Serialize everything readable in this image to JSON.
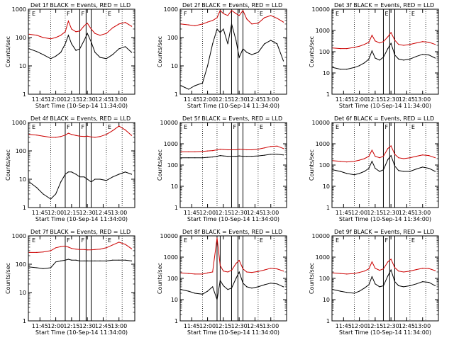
{
  "x_tick_labels": [
    "11:45",
    "12:00",
    "12:15",
    "12:30",
    "12:45",
    "13:00"
  ],
  "x_tick_values": [
    11.75,
    12.0,
    12.25,
    12.5,
    12.75,
    13.0
  ],
  "xlim": [
    11.567,
    13.25
  ],
  "xlabel": "Start Time (10-Sep-14 11:34:00)",
  "ylabel": "Counts/sec",
  "colors": {
    "events": "#000000",
    "lld": "#cc0000",
    "axes": "#000000"
  },
  "chart_data": [
    {
      "type": "line",
      "title": "Det 1f BLACK = Events, RED = LLD",
      "ylim": [
        1,
        1000
      ],
      "yscale": "log",
      "y_ticks": [
        1,
        10,
        100,
        1000
      ],
      "y_tick_labels": [
        "1",
        "10",
        "100",
        "1000"
      ],
      "vlines_dotted": [
        11.92,
        12.15,
        12.8,
        13.05
      ],
      "vlines_solid": [
        12.38,
        12.48,
        12.56
      ],
      "letters": [
        {
          "t": "E",
          "x": 11.6
        },
        {
          "t": "F",
          "x": 12.15
        },
        {
          "t": "F",
          "x": 12.38
        },
        {
          "t": "E",
          "x": 12.8
        }
      ],
      "x": [
        11.58,
        11.7,
        11.8,
        11.92,
        12.0,
        12.08,
        12.15,
        12.2,
        12.25,
        12.32,
        12.38,
        12.45,
        12.5,
        12.56,
        12.62,
        12.7,
        12.8,
        12.9,
        13.0,
        13.1,
        13.2
      ],
      "series": [
        {
          "values": [
            40,
            32,
            25,
            18,
            22,
            30,
            60,
            120,
            60,
            35,
            40,
            80,
            140,
            70,
            30,
            20,
            18,
            25,
            40,
            48,
            30
          ]
        },
        {
          "values": [
            130,
            120,
            100,
            90,
            100,
            120,
            160,
            380,
            200,
            160,
            170,
            260,
            320,
            200,
            140,
            120,
            140,
            220,
            300,
            340,
            250
          ]
        }
      ]
    },
    {
      "type": "line",
      "title": "Det 2f BLACK = Events, RED = LLD",
      "ylim": [
        1,
        1000
      ],
      "yscale": "log",
      "y_ticks": [
        1,
        10,
        100,
        1000
      ],
      "y_tick_labels": [
        "1",
        "10",
        "100",
        "1000"
      ],
      "vlines_dotted": [
        11.92,
        12.15,
        12.8,
        13.05
      ],
      "vlines_solid": [
        12.2,
        12.38,
        12.48,
        12.56
      ],
      "letters": [
        {
          "t": "F",
          "x": 11.6
        },
        {
          "t": "E",
          "x": 12.8
        }
      ],
      "x": [
        11.58,
        11.7,
        11.8,
        11.92,
        12.0,
        12.08,
        12.15,
        12.2,
        12.25,
        12.32,
        12.38,
        12.45,
        12.5,
        12.56,
        12.62,
        12.7,
        12.8,
        12.9,
        13.0,
        13.1,
        13.2
      ],
      "series": [
        {
          "values": [
            2,
            1.5,
            2,
            2.5,
            10,
            60,
            200,
            150,
            200,
            60,
            300,
            80,
            20,
            40,
            30,
            25,
            30,
            60,
            80,
            60,
            15
          ]
        },
        {
          "values": [
            300,
            280,
            260,
            300,
            350,
            400,
            500,
            900,
            700,
            600,
            900,
            700,
            600,
            900,
            450,
            300,
            320,
            500,
            600,
            480,
            350
          ]
        }
      ]
    },
    {
      "type": "line",
      "title": "Det 3f BLACK = Events, RED = LLD",
      "ylim": [
        1,
        10000
      ],
      "yscale": "log",
      "y_ticks": [
        1,
        10,
        100,
        1000,
        10000
      ],
      "y_tick_labels": [
        "1",
        "10",
        "100",
        "1000",
        "10000"
      ],
      "vlines_dotted": [
        11.92,
        12.15,
        12.8,
        13.05
      ],
      "vlines_solid": [
        12.38,
        12.48,
        12.56
      ],
      "letters": [
        {
          "t": "E",
          "x": 11.6
        },
        {
          "t": "E",
          "x": 12.38
        },
        {
          "t": "E",
          "x": 12.8
        }
      ],
      "x": [
        11.58,
        11.7,
        11.8,
        11.92,
        12.0,
        12.08,
        12.15,
        12.2,
        12.25,
        12.32,
        12.38,
        12.45,
        12.5,
        12.56,
        12.62,
        12.7,
        12.8,
        12.9,
        13.0,
        13.1,
        13.2
      ],
      "series": [
        {
          "values": [
            18,
            15,
            15,
            18,
            22,
            30,
            45,
            110,
            50,
            40,
            55,
            140,
            250,
            70,
            45,
            40,
            45,
            60,
            75,
            70,
            50
          ]
        },
        {
          "values": [
            150,
            140,
            140,
            160,
            180,
            220,
            280,
            600,
            320,
            260,
            300,
            500,
            800,
            350,
            220,
            200,
            220,
            260,
            300,
            280,
            220
          ]
        }
      ]
    },
    {
      "type": "line",
      "title": "Det 4f BLACK = Events, RED = LLD",
      "ylim": [
        1,
        1000
      ],
      "yscale": "log",
      "y_ticks": [
        1,
        10,
        100,
        1000
      ],
      "y_tick_labels": [
        "1",
        "10",
        "100",
        "1000"
      ],
      "vlines_dotted": [
        11.92,
        12.8,
        13.05
      ],
      "vlines_solid": [
        12.15,
        12.38,
        12.48,
        12.56
      ],
      "letters": [
        {
          "t": "E",
          "x": 11.6
        },
        {
          "t": "F",
          "x": 12.15
        },
        {
          "t": "F",
          "x": 12.38
        },
        {
          "t": "E",
          "x": 12.8
        }
      ],
      "x": [
        11.58,
        11.7,
        11.8,
        11.92,
        12.0,
        12.08,
        12.15,
        12.2,
        12.25,
        12.32,
        12.38,
        12.45,
        12.5,
        12.56,
        12.62,
        12.7,
        12.8,
        12.9,
        13.0,
        13.1,
        13.2
      ],
      "series": [
        {
          "values": [
            8,
            5,
            3,
            2,
            3,
            8,
            15,
            18,
            18,
            15,
            12,
            12,
            10,
            8,
            10,
            10,
            9,
            12,
            15,
            18,
            15
          ]
        },
        {
          "values": [
            380,
            360,
            330,
            300,
            300,
            320,
            360,
            420,
            380,
            350,
            330,
            320,
            330,
            310,
            300,
            320,
            380,
            520,
            750,
            550,
            350
          ]
        }
      ]
    },
    {
      "type": "line",
      "title": "Det 5f BLACK = Events, RED = LLD",
      "ylim": [
        1,
        10000
      ],
      "yscale": "log",
      "y_ticks": [
        1,
        10,
        100,
        1000,
        10000
      ],
      "y_tick_labels": [
        "1",
        "10",
        "100",
        "1000",
        "10000"
      ],
      "vlines_dotted": [
        11.92,
        12.15,
        12.8,
        13.05
      ],
      "vlines_solid": [
        12.38,
        12.48,
        12.56
      ],
      "letters": [
        {
          "t": "E",
          "x": 11.6
        },
        {
          "t": "F",
          "x": 12.38
        },
        {
          "t": "E",
          "x": 12.8
        }
      ],
      "x": [
        11.58,
        11.7,
        11.8,
        11.92,
        12.0,
        12.08,
        12.15,
        12.2,
        12.25,
        12.32,
        12.38,
        12.45,
        12.5,
        12.56,
        12.62,
        12.7,
        12.8,
        12.9,
        13.0,
        13.1,
        13.2
      ],
      "series": [
        {
          "values": [
            220,
            220,
            220,
            220,
            230,
            240,
            260,
            280,
            270,
            260,
            260,
            260,
            270,
            260,
            260,
            260,
            270,
            290,
            320,
            320,
            300
          ]
        },
        {
          "values": [
            420,
            420,
            420,
            440,
            460,
            480,
            520,
            560,
            540,
            520,
            520,
            520,
            560,
            540,
            520,
            520,
            560,
            640,
            750,
            780,
            600
          ]
        }
      ]
    },
    {
      "type": "line",
      "title": "Det 6f BLACK = Events, RED = LLD",
      "ylim": [
        1,
        10000
      ],
      "yscale": "log",
      "y_ticks": [
        1,
        10,
        100,
        1000,
        10000
      ],
      "y_tick_labels": [
        "1",
        "10",
        "100",
        "1000",
        "10000"
      ],
      "vlines_dotted": [
        11.92,
        12.15,
        12.8,
        13.05
      ],
      "vlines_solid": [
        12.38,
        12.48,
        12.56
      ],
      "letters": [
        {
          "t": "E",
          "x": 11.6
        },
        {
          "t": "F",
          "x": 12.38
        },
        {
          "t": "E",
          "x": 12.8
        }
      ],
      "x": [
        11.58,
        11.7,
        11.8,
        11.92,
        12.0,
        12.08,
        12.15,
        12.2,
        12.25,
        12.32,
        12.38,
        12.45,
        12.5,
        12.56,
        12.62,
        12.7,
        12.8,
        12.9,
        13.0,
        13.1,
        13.2
      ],
      "series": [
        {
          "values": [
            60,
            50,
            40,
            35,
            40,
            50,
            70,
            150,
            70,
            50,
            60,
            180,
            280,
            90,
            55,
            50,
            50,
            65,
            80,
            70,
            50
          ]
        },
        {
          "values": [
            160,
            150,
            140,
            150,
            170,
            200,
            260,
            500,
            260,
            220,
            260,
            600,
            800,
            320,
            220,
            200,
            220,
            260,
            300,
            280,
            220
          ]
        }
      ]
    },
    {
      "type": "line",
      "title": "Det 7f BLACK = Events, RED = LLD",
      "ylim": [
        1,
        1000
      ],
      "yscale": "log",
      "y_ticks": [
        1,
        10,
        100,
        1000
      ],
      "y_tick_labels": [
        "1",
        "10",
        "100",
        "1000"
      ],
      "vlines_dotted": [
        11.92,
        12.8,
        13.05
      ],
      "vlines_solid": [
        12.15,
        12.38,
        12.48,
        12.56
      ],
      "letters": [
        {
          "t": "E",
          "x": 11.6
        },
        {
          "t": "F",
          "x": 12.15
        },
        {
          "t": "F",
          "x": 12.38
        },
        {
          "t": "E",
          "x": 12.8
        }
      ],
      "x": [
        11.58,
        11.7,
        11.8,
        11.92,
        12.0,
        12.08,
        12.15,
        12.2,
        12.25,
        12.32,
        12.38,
        12.45,
        12.5,
        12.56,
        12.62,
        12.7,
        12.8,
        12.9,
        13.0,
        13.1,
        13.2
      ],
      "series": [
        {
          "values": [
            80,
            75,
            70,
            75,
            120,
            130,
            140,
            150,
            140,
            140,
            130,
            130,
            130,
            130,
            130,
            130,
            130,
            140,
            140,
            140,
            130
          ]
        },
        {
          "values": [
            260,
            260,
            270,
            300,
            380,
            420,
            440,
            400,
            360,
            340,
            330,
            330,
            320,
            320,
            330,
            340,
            380,
            480,
            600,
            500,
            350
          ]
        }
      ]
    },
    {
      "type": "line",
      "title": "Det 8f BLACK = Events, RED = LLD",
      "ylim": [
        1,
        10000
      ],
      "yscale": "log",
      "y_ticks": [
        1,
        10,
        100,
        1000,
        10000
      ],
      "y_tick_labels": [
        "1",
        "10",
        "100",
        "1000",
        "10000"
      ],
      "vlines_dotted": [
        11.92,
        12.8,
        13.05
      ],
      "vlines_solid": [
        12.15,
        12.2,
        12.38,
        12.48,
        12.56
      ],
      "letters": [
        {
          "t": "E",
          "x": 11.6
        },
        {
          "t": "E",
          "x": 12.8
        }
      ],
      "x": [
        11.58,
        11.7,
        11.8,
        11.92,
        12.0,
        12.08,
        12.15,
        12.2,
        12.25,
        12.32,
        12.38,
        12.45,
        12.5,
        12.56,
        12.62,
        12.7,
        12.8,
        12.9,
        13.0,
        13.1,
        13.2
      ],
      "series": [
        {
          "values": [
            30,
            25,
            20,
            18,
            25,
            40,
            10,
            80,
            45,
            30,
            35,
            100,
            200,
            60,
            40,
            35,
            40,
            50,
            60,
            55,
            40
          ]
        },
        {
          "values": [
            180,
            170,
            160,
            160,
            180,
            200,
            8000,
            400,
            220,
            200,
            240,
            500,
            700,
            280,
            200,
            190,
            210,
            250,
            300,
            280,
            220
          ]
        }
      ]
    },
    {
      "type": "line",
      "title": "Det 9f BLACK = Events, RED = LLD",
      "ylim": [
        1,
        10000
      ],
      "yscale": "log",
      "y_ticks": [
        1,
        10,
        100,
        1000,
        10000
      ],
      "y_tick_labels": [
        "1",
        "10",
        "100",
        "1000",
        "10000"
      ],
      "vlines_dotted": [
        11.92,
        12.15,
        12.8,
        13.05
      ],
      "vlines_solid": [
        12.38,
        12.48,
        12.56
      ],
      "letters": [
        {
          "t": "E",
          "x": 11.6
        },
        {
          "t": "F",
          "x": 12.38
        },
        {
          "t": "E",
          "x": 12.8
        }
      ],
      "x": [
        11.58,
        11.7,
        11.8,
        11.92,
        12.0,
        12.08,
        12.15,
        12.2,
        12.25,
        12.32,
        12.38,
        12.45,
        12.5,
        12.56,
        12.62,
        12.7,
        12.8,
        12.9,
        13.0,
        13.1,
        13.2
      ],
      "series": [
        {
          "values": [
            30,
            25,
            22,
            20,
            25,
            35,
            50,
            120,
            55,
            40,
            45,
            130,
            250,
            70,
            45,
            40,
            45,
            55,
            70,
            65,
            45
          ]
        },
        {
          "values": [
            180,
            170,
            160,
            170,
            190,
            220,
            280,
            600,
            300,
            240,
            280,
            600,
            800,
            320,
            220,
            200,
            220,
            260,
            300,
            290,
            230
          ]
        }
      ]
    }
  ]
}
